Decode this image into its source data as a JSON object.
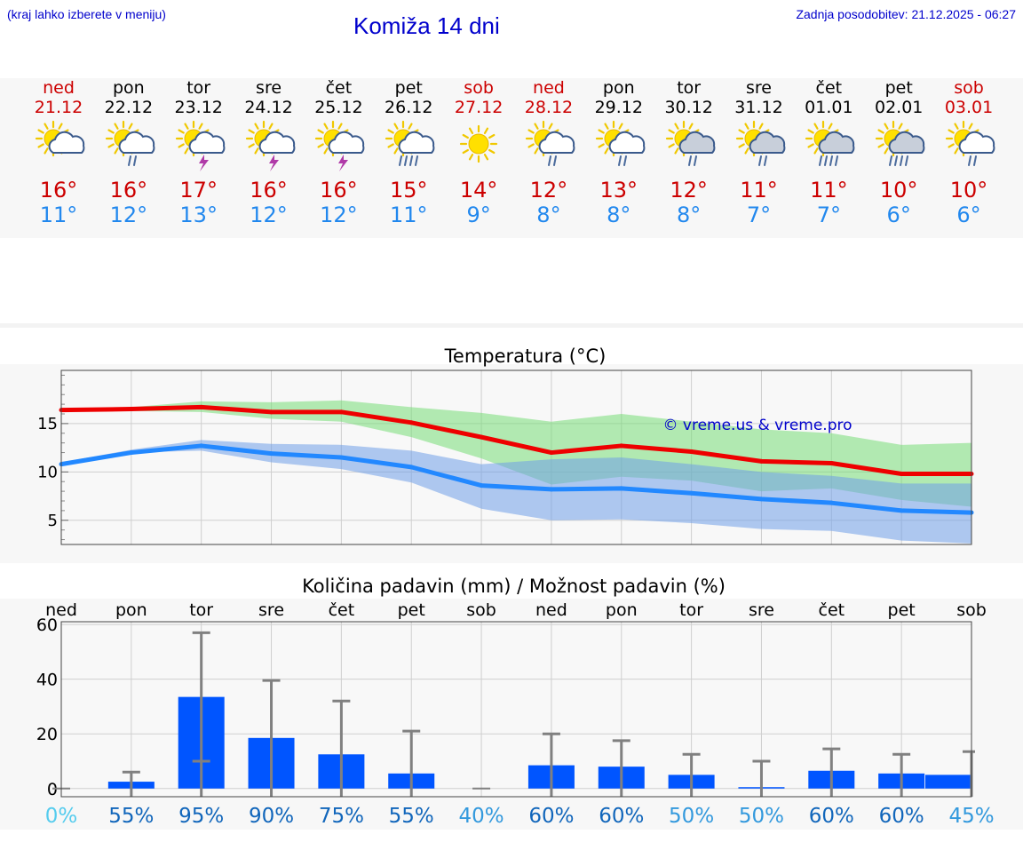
{
  "header": {
    "hint": "(kraj lahko izberete v meniju)",
    "title": "Komiža 14 dni",
    "updated": "Zadnja posodobitev: 21.12.2025 - 06:27"
  },
  "colors": {
    "weekend": "#cc0000",
    "weekday": "#000000",
    "tmax": "#cc0000",
    "tmin": "#2288ee",
    "max_line": "#ee0000",
    "min_line": "#2288ff",
    "max_band": "#77dd77",
    "min_band": "#6f9fe8",
    "bar": "#0055ff",
    "err": "#808080"
  },
  "days": [
    {
      "name": "ned",
      "date": "21.12",
      "weekend": true,
      "icon": "sun-cloud-icon",
      "tmax": "16°",
      "tmin": "11°"
    },
    {
      "name": "pon",
      "date": "22.12",
      "weekend": false,
      "icon": "sun-cloud-rain-icon",
      "tmax": "16°",
      "tmin": "12°"
    },
    {
      "name": "tor",
      "date": "23.12",
      "weekend": false,
      "icon": "sun-cloud-storm-icon",
      "tmax": "17°",
      "tmin": "13°"
    },
    {
      "name": "sre",
      "date": "24.12",
      "weekend": false,
      "icon": "sun-cloud-storm-icon",
      "tmax": "16°",
      "tmin": "12°"
    },
    {
      "name": "čet",
      "date": "25.12",
      "weekend": false,
      "icon": "sun-cloud-storm-icon",
      "tmax": "16°",
      "tmin": "12°"
    },
    {
      "name": "pet",
      "date": "26.12",
      "weekend": false,
      "icon": "sun-cloud-heavy-rain-icon",
      "tmax": "15°",
      "tmin": "11°"
    },
    {
      "name": "sob",
      "date": "27.12",
      "weekend": true,
      "icon": "sun-icon",
      "tmax": "14°",
      "tmin": "9°"
    },
    {
      "name": "ned",
      "date": "28.12",
      "weekend": true,
      "icon": "sun-cloud-rain-icon",
      "tmax": "12°",
      "tmin": "8°"
    },
    {
      "name": "pon",
      "date": "29.12",
      "weekend": false,
      "icon": "sun-cloud-rain-icon",
      "tmax": "13°",
      "tmin": "8°"
    },
    {
      "name": "tor",
      "date": "30.12",
      "weekend": false,
      "icon": "sun-grey-cloud-rain-icon",
      "tmax": "12°",
      "tmin": "8°"
    },
    {
      "name": "sre",
      "date": "31.12",
      "weekend": false,
      "icon": "sun-grey-cloud-rain-icon",
      "tmax": "11°",
      "tmin": "7°"
    },
    {
      "name": "čet",
      "date": "01.01",
      "weekend": false,
      "icon": "sun-grey-cloud-heavy-rain-icon",
      "tmax": "11°",
      "tmin": "7°"
    },
    {
      "name": "pet",
      "date": "02.01",
      "weekend": false,
      "icon": "sun-grey-cloud-heavy-rain-icon",
      "tmax": "10°",
      "tmin": "6°"
    },
    {
      "name": "sob",
      "date": "03.01",
      "weekend": true,
      "icon": "sun-cloud-rain-icon",
      "tmax": "10°",
      "tmin": "6°"
    }
  ],
  "chart_data": [
    {
      "type": "line",
      "title": "Temperatura (°C)",
      "watermark": "© vreme.us & vreme.pro",
      "x": [
        0,
        1,
        2,
        3,
        4,
        5,
        6,
        7,
        8,
        9,
        10,
        11,
        12,
        13
      ],
      "ylim": [
        2.5,
        20.5
      ],
      "yticks": [
        5,
        10,
        15
      ],
      "grid": true,
      "series": [
        {
          "name": "max",
          "values": [
            16.4,
            16.5,
            16.7,
            16.2,
            16.2,
            15.1,
            13.6,
            12.0,
            12.7,
            12.1,
            11.1,
            10.9,
            9.8,
            9.8
          ]
        },
        {
          "name": "min",
          "values": [
            10.8,
            12.0,
            12.7,
            11.9,
            11.5,
            10.5,
            8.6,
            8.2,
            8.3,
            7.8,
            7.2,
            6.8,
            6.0,
            5.8
          ]
        }
      ],
      "bands": [
        {
          "name": "max range",
          "lower": [
            16.3,
            16.3,
            16.2,
            15.5,
            15.2,
            13.6,
            11.4,
            8.7,
            9.5,
            9.1,
            8.0,
            8.3,
            7.1,
            6.4
          ],
          "upper": [
            16.5,
            16.7,
            17.3,
            17.2,
            17.4,
            16.7,
            16.1,
            15.2,
            16.0,
            15.2,
            14.4,
            14.0,
            12.8,
            13.0
          ]
        },
        {
          "name": "min range",
          "lower": [
            10.9,
            12.0,
            12.2,
            11.0,
            10.3,
            8.9,
            6.2,
            5.0,
            5.1,
            4.7,
            4.1,
            3.9,
            2.9,
            2.6
          ],
          "upper": [
            11.0,
            12.3,
            13.3,
            12.9,
            12.8,
            12.2,
            10.8,
            11.3,
            11.5,
            10.8,
            10.0,
            9.6,
            8.8,
            8.8
          ]
        }
      ]
    },
    {
      "type": "bar",
      "title": "Količina padavin (mm) / Možnost padavin (%)",
      "categories": [
        "ned",
        "pon",
        "tor",
        "sre",
        "čet",
        "pet",
        "sob",
        "ned",
        "pon",
        "tor",
        "sre",
        "čet",
        "pet",
        "sob"
      ],
      "values": [
        0,
        2.5,
        33.5,
        18.5,
        12.5,
        5.5,
        0,
        8.5,
        8,
        5,
        0.5,
        6.5,
        5.5,
        5
      ],
      "error_upper": [
        0,
        6,
        57,
        39.5,
        32,
        21,
        0,
        20,
        17.5,
        12.5,
        10,
        14.5,
        12.5,
        13.5
      ],
      "error_lower": [
        0,
        0,
        10,
        0,
        0,
        0,
        0,
        0,
        0,
        0,
        0,
        0,
        0,
        0
      ],
      "probability": [
        "0%",
        "55%",
        "95%",
        "90%",
        "75%",
        "55%",
        "40%",
        "60%",
        "60%",
        "50%",
        "50%",
        "60%",
        "60%",
        "45%"
      ],
      "probability_colors": [
        "#55ccee",
        "#1166bb",
        "#1166bb",
        "#1166bb",
        "#1166bb",
        "#1166bb",
        "#3399dd",
        "#1166bb",
        "#1166bb",
        "#3399dd",
        "#3399dd",
        "#1166bb",
        "#1166bb",
        "#3399dd"
      ],
      "ylim": [
        -3,
        61
      ],
      "yticks": [
        0,
        20,
        40,
        60
      ],
      "grid": true
    }
  ]
}
